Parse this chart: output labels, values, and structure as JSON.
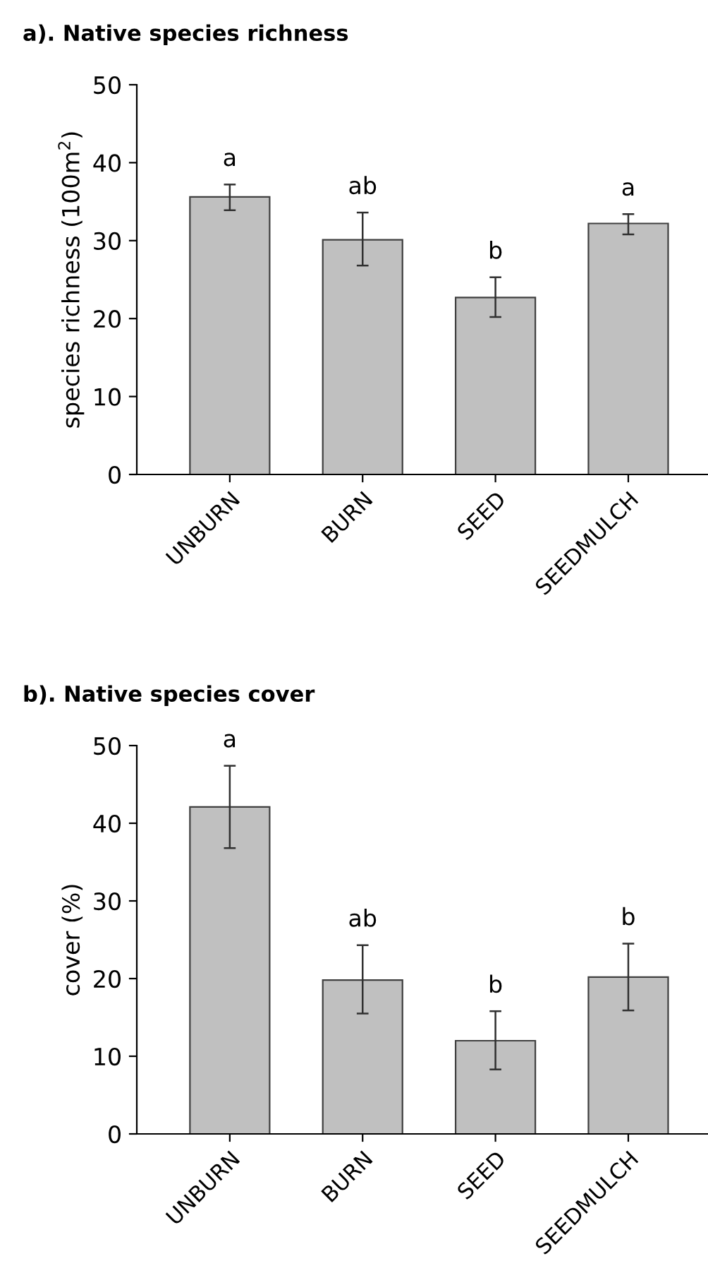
{
  "chart_data": [
    {
      "type": "bar",
      "title": "a). Native species richness",
      "ylabel": "species richness (100m$^{2}$)",
      "categories": [
        "UNBURN",
        "BURN",
        "SEED",
        "SEEDMULCH"
      ],
      "series": [
        {
          "color": "#c0c0c0",
          "values": [
            35.6,
            30.1,
            22.7,
            32.2
          ],
          "errors": [
            [
              33.9,
              37.2
            ],
            [
              26.8,
              33.6
            ],
            [
              20.2,
              25.3
            ],
            [
              30.8,
              33.4
            ]
          ]
        }
      ],
      "ylim": [
        0,
        50
      ],
      "yticks": [
        0,
        10,
        20,
        30,
        40,
        50
      ],
      "grid": false,
      "legend": false,
      "annotations": [
        "a",
        "ab",
        "b",
        "a"
      ]
    },
    {
      "type": "bar",
      "title": "b). Native species cover",
      "ylabel": "cover (%)",
      "categories": [
        "UNBURN",
        "BURN",
        "SEED",
        "SEEDMULCH"
      ],
      "series": [
        {
          "color": "#c0c0c0",
          "values": [
            42.1,
            19.8,
            12.0,
            20.2
          ],
          "errors": [
            [
              36.8,
              47.4
            ],
            [
              15.5,
              24.3
            ],
            [
              8.3,
              15.8
            ],
            [
              15.9,
              24.5
            ]
          ]
        }
      ],
      "ylim": [
        0,
        50
      ],
      "yticks": [
        0,
        10,
        20,
        30,
        40,
        50
      ],
      "grid": false,
      "legend": false,
      "annotations": [
        "a",
        "ab",
        "b",
        "b"
      ]
    }
  ]
}
